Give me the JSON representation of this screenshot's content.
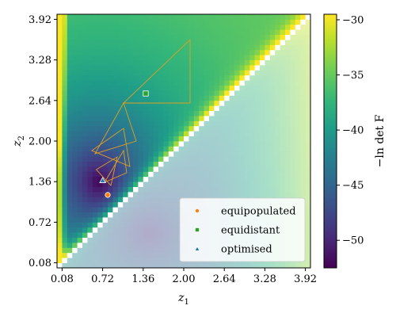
{
  "chart_data": {
    "type": "heatmap",
    "xlabel": "z",
    "xlabel_sub": "1",
    "ylabel": "z",
    "ylabel_sub": "2",
    "xlim": [
      0.0,
      4.0
    ],
    "ylim": [
      0.0,
      4.0
    ],
    "xticks": [
      0.08,
      0.72,
      1.36,
      2.0,
      2.64,
      3.28,
      3.92
    ],
    "xtick_labels": [
      "0.08",
      "0.72",
      "1.36",
      "2.00",
      "2.64",
      "3.28",
      "3.92"
    ],
    "yticks": [
      0.08,
      0.72,
      1.36,
      2.0,
      2.64,
      3.28,
      3.92
    ],
    "ytick_labels": [
      "0.08",
      "0.72",
      "1.36",
      "2.00",
      "2.64",
      "3.28",
      "3.92"
    ],
    "colormap": "viridis",
    "colorbar": {
      "label": "−ln det F",
      "range": [
        -52.5,
        -29.5
      ],
      "ticks": [
        -30,
        -35,
        -40,
        -45,
        -50
      ],
      "tick_labels": [
        "−30",
        "−35",
        "−40",
        "−45",
        "−50"
      ]
    },
    "grid_resolution": 0.08,
    "minimum": [
      0.66,
      1.36
    ],
    "diagonal_masked": true,
    "lower_triangle_faded": true,
    "legend_position": "lower-right",
    "series": [
      {
        "name": "equipopulated",
        "marker": "circle",
        "color": "#ff7f0e",
        "x": [
          0.8
        ],
        "y": [
          1.15
        ]
      },
      {
        "name": "equidistant",
        "marker": "square",
        "color": "#2ca02c",
        "x": [
          1.4
        ],
        "y": [
          2.75
        ]
      },
      {
        "name": "optimised",
        "marker": "triangle",
        "color": "#1f77b4",
        "x": [
          0.72
        ],
        "y": [
          1.38
        ]
      }
    ],
    "simplex_outlines": [
      [
        [
          1.05,
          2.6
        ],
        [
          2.1,
          3.6
        ],
        [
          2.1,
          2.6
        ]
      ],
      [
        [
          0.6,
          1.8
        ],
        [
          1.05,
          2.6
        ],
        [
          1.25,
          2.0
        ]
      ],
      [
        [
          0.55,
          1.85
        ],
        [
          1.05,
          2.2
        ],
        [
          1.15,
          1.6
        ]
      ],
      [
        [
          0.75,
          1.35
        ],
        [
          1.05,
          1.85
        ],
        [
          1.1,
          1.5
        ]
      ],
      [
        [
          0.62,
          1.55
        ],
        [
          0.95,
          1.75
        ],
        [
          0.85,
          1.3
        ]
      ]
    ],
    "simplex_color": "#e0a020"
  }
}
